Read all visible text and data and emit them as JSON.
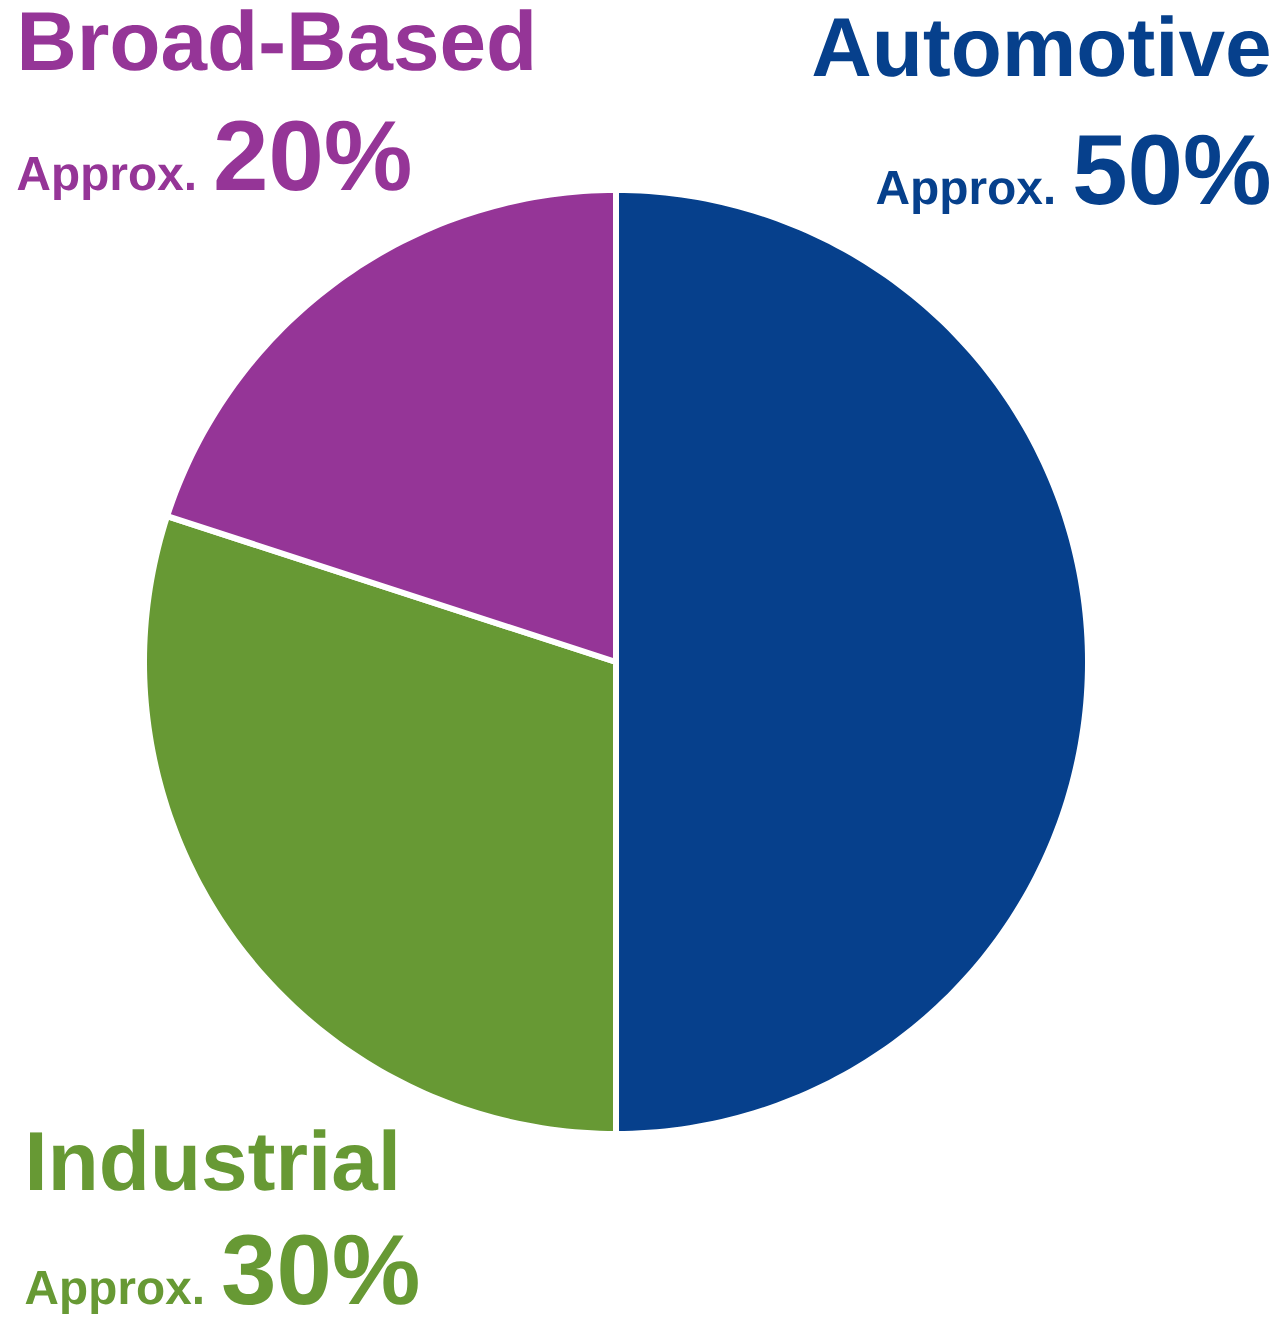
{
  "chart_data": {
    "type": "pie",
    "categories": [
      "Automotive",
      "Industrial",
      "Broad-Based"
    ],
    "values": [
      50,
      30,
      20
    ],
    "colors": [
      "#06408c",
      "#679934",
      "#953597"
    ],
    "value_labels": [
      "50%",
      "30%",
      "20%"
    ],
    "annotations": [
      "Approx.",
      "Approx.",
      "Approx."
    ]
  }
}
